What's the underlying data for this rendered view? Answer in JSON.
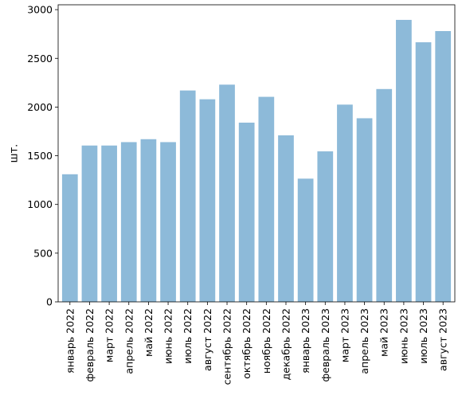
{
  "chart_data": {
    "type": "bar",
    "categories": [
      "январь 2022",
      "февраль 2022",
      "март 2022",
      "апрель 2022",
      "май 2022",
      "июнь 2022",
      "июль 2022",
      "август 2022",
      "сентябрь 2022",
      "октябрь 2022",
      "ноябрь 2022",
      "декабрь 2022",
      "январь 2023",
      "февраль 2023",
      "март 2023",
      "апрель 2023",
      "май 2023",
      "июнь 2023",
      "июль 2023",
      "август 2023"
    ],
    "values": [
      1310,
      1605,
      1605,
      1640,
      1670,
      1640,
      2170,
      2080,
      2230,
      1840,
      2105,
      1710,
      1265,
      1545,
      2025,
      1885,
      2185,
      2895,
      2665,
      2780
    ],
    "ylabel": "шт.",
    "xlabel": "",
    "ylim": [
      0,
      3050
    ],
    "yticks": [
      0,
      500,
      1000,
      1500,
      2000,
      2500,
      3000
    ],
    "grid": false,
    "bar_color": "#8dbad9"
  }
}
